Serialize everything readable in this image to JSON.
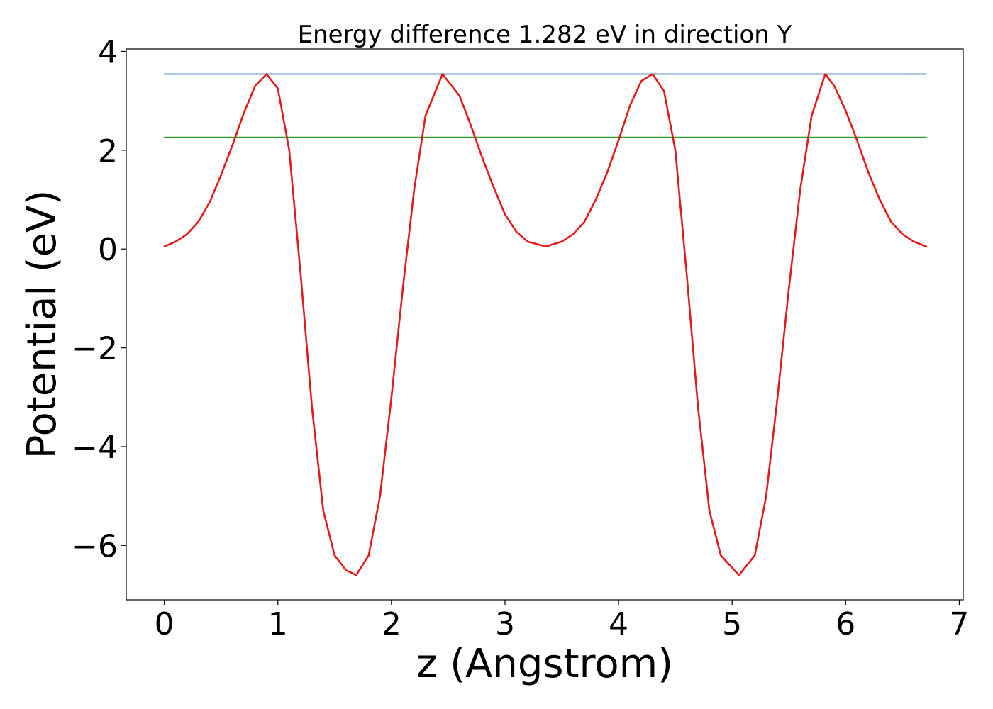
{
  "chart_data": {
    "type": "line",
    "title": "Energy difference 1.282 eV in direction Y",
    "xlabel": "z (Angstrom)",
    "ylabel": "Potential (eV)",
    "xlim": [
      -0.335,
      7.035
    ],
    "ylim": [
      -7.1,
      4.05
    ],
    "xticks": [
      0,
      1,
      2,
      3,
      4,
      5,
      6,
      7
    ],
    "xtick_labels": [
      "0",
      "1",
      "2",
      "3",
      "4",
      "5",
      "6",
      "7"
    ],
    "yticks": [
      -6,
      -4,
      -2,
      0,
      2,
      4
    ],
    "ytick_labels": [
      "−6",
      "−4",
      "−2",
      "0",
      "2",
      "4"
    ],
    "grid": false,
    "series": [
      {
        "color": "#1f77b4",
        "x": [
          0,
          6.71
        ],
        "y": [
          3.54,
          3.54
        ]
      },
      {
        "color": "#2ca02c",
        "x": [
          0,
          6.71
        ],
        "y": [
          2.26,
          2.26
        ]
      },
      {
        "color": "#e41a1c",
        "x": [
          0,
          0.1,
          0.2,
          0.3,
          0.4,
          0.5,
          0.6,
          0.7,
          0.8,
          0.9,
          1.0,
          1.1,
          1.2,
          1.3,
          1.4,
          1.5,
          1.6,
          1.69,
          1.8,
          1.9,
          2.0,
          2.1,
          2.2,
          2.3,
          2.45,
          2.6,
          2.7,
          2.8,
          2.9,
          3.0,
          3.1,
          3.2,
          3.36,
          3.5,
          3.6,
          3.7,
          3.8,
          3.9,
          4.0,
          4.1,
          4.2,
          4.3,
          4.4,
          4.5,
          4.6,
          4.7,
          4.8,
          4.9,
          5.06,
          5.2,
          5.3,
          5.4,
          5.5,
          5.6,
          5.7,
          5.82,
          5.9,
          6.0,
          6.1,
          6.2,
          6.3,
          6.4,
          6.5,
          6.6,
          6.71
        ],
        "y": [
          0.05,
          0.15,
          0.3,
          0.55,
          0.95,
          1.5,
          2.1,
          2.75,
          3.3,
          3.54,
          3.25,
          2.0,
          -0.5,
          -3.2,
          -5.3,
          -6.2,
          -6.5,
          -6.6,
          -6.2,
          -5.0,
          -3.0,
          -0.8,
          1.2,
          2.7,
          3.54,
          3.1,
          2.5,
          1.85,
          1.25,
          0.7,
          0.35,
          0.15,
          0.05,
          0.15,
          0.3,
          0.55,
          1.0,
          1.55,
          2.2,
          2.9,
          3.4,
          3.54,
          3.2,
          2.0,
          -0.5,
          -3.2,
          -5.3,
          -6.2,
          -6.6,
          -6.2,
          -5.0,
          -3.0,
          -0.8,
          1.2,
          2.7,
          3.54,
          3.3,
          2.8,
          2.2,
          1.55,
          1.0,
          0.55,
          0.3,
          0.15,
          0.05
        ]
      }
    ]
  }
}
